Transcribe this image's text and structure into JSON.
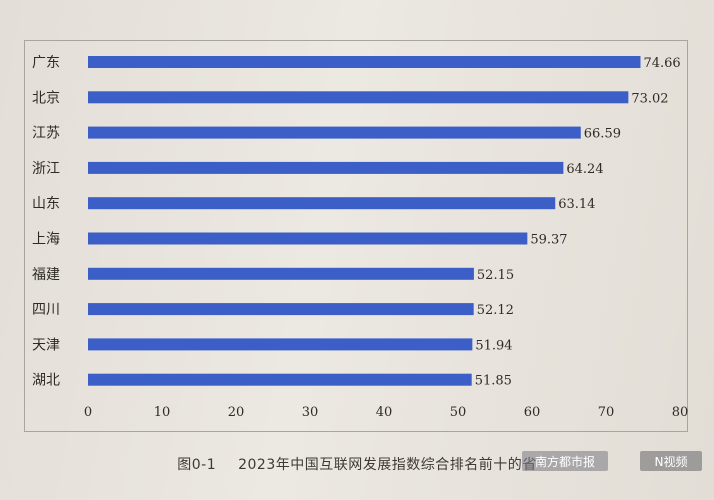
{
  "chart_data": {
    "type": "bar",
    "orientation": "horizontal",
    "categories": [
      "广东",
      "北京",
      "江苏",
      "浙江",
      "山东",
      "上海",
      "福建",
      "四川",
      "天津",
      "湖北"
    ],
    "values": [
      74.66,
      73.02,
      66.59,
      64.24,
      63.14,
      59.37,
      52.15,
      52.12,
      51.94,
      51.85
    ],
    "value_labels": [
      "74.66",
      "73.02",
      "66.59",
      "64.24",
      "63.14",
      "59.37",
      "52.15",
      "52.12",
      "51.94",
      "51.85"
    ],
    "xlim": [
      0,
      80
    ],
    "xticks": [
      0,
      10,
      20,
      30,
      40,
      50,
      60,
      70,
      80
    ],
    "bar_color": "#3b5ec7",
    "grid": false
  },
  "caption": {
    "figure_number": "图0-1",
    "text": "2023年中国互联网发展指数综合排名前十的省"
  },
  "watermarks": {
    "left": "南方都市报",
    "right": "N视频"
  }
}
